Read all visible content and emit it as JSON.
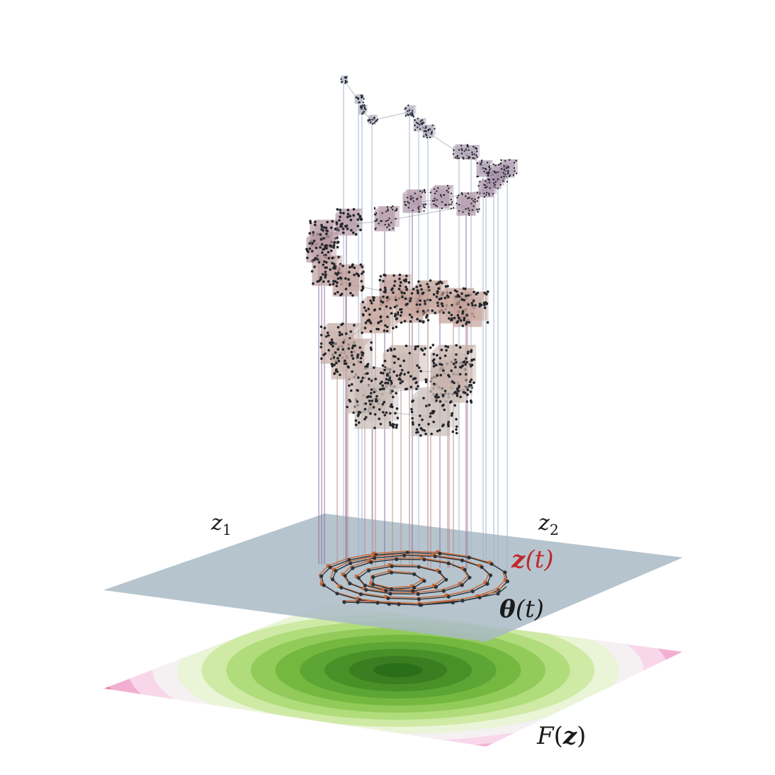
{
  "labels": {
    "z1_var": "z",
    "z1_sub": "1",
    "z2_var": "z",
    "z2_sub": "2",
    "zt_bold": "z",
    "zt_arg": "(t)",
    "theta_bold": "θ",
    "theta_arg": "(t)",
    "F_name": "F",
    "F_open": "(",
    "F_bold": "z",
    "F_close": ")"
  },
  "colors": {
    "zt_label": "#c0282a",
    "theta_label": "#1a1a1a",
    "plane": "#a9bac6",
    "z_trajectory": "#c8693a",
    "theta_trajectory": "#2b333a",
    "contour_center": "#2a6e1a",
    "contour_edge": "#c0146e"
  },
  "chart_data": {
    "type": "diagram",
    "planes": [
      "parameter plane (z1, z2)",
      "objective F(z) contour plane"
    ],
    "contour_colormap": "PiYG",
    "num_cubes": 42,
    "trajectories": [
      "z(t)",
      "θ(t)"
    ]
  }
}
